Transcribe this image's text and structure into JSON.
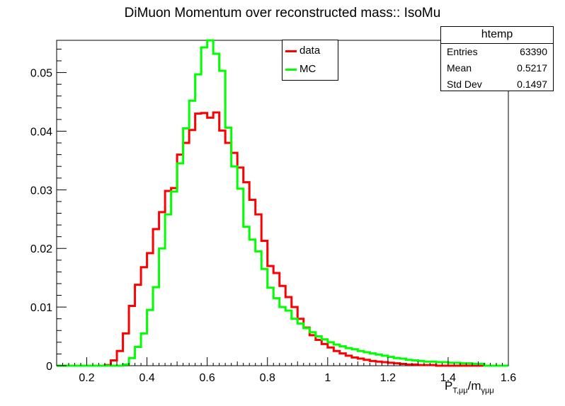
{
  "chart_data": {
    "type": "histogram-step",
    "title": "DiMuon Momentum over reconstructed mass:: IsoMu",
    "xlabel": {
      "base": "P",
      "base_sub": "T,μμ",
      "sep": "/",
      "second": "m",
      "second_sub": "γμμ"
    },
    "xlim": [
      0.1,
      1.6
    ],
    "ylim": [
      0,
      0.0555
    ],
    "x_ticks": [
      "0.2",
      "0.4",
      "0.6",
      "0.8",
      "1",
      "1.2",
      "1.4",
      "1.6"
    ],
    "x_tick_values": [
      0.2,
      0.4,
      0.6,
      0.8,
      1.0,
      1.2,
      1.4,
      1.6
    ],
    "y_ticks": [
      "0",
      "0.01",
      "0.02",
      "0.03",
      "0.04",
      "0.05"
    ],
    "y_tick_values": [
      0,
      0.01,
      0.02,
      0.03,
      0.04,
      0.05
    ],
    "bin_edges_start": 0.1,
    "bin_width": 0.02,
    "series": [
      {
        "name": "data",
        "color": "#ff0000",
        "values": [
          0,
          0,
          0,
          0,
          0,
          0,
          0,
          0,
          0.0001,
          0.0009,
          0.0025,
          0.0055,
          0.0102,
          0.0138,
          0.0168,
          0.0192,
          0.0233,
          0.0262,
          0.0298,
          0.0303,
          0.036,
          0.038,
          0.0402,
          0.043,
          0.0431,
          0.0423,
          0.0432,
          0.0401,
          0.038,
          0.0363,
          0.0338,
          0.0313,
          0.0283,
          0.0258,
          0.0213,
          0.017,
          0.0158,
          0.0136,
          0.0117,
          0.01,
          0.008,
          0.0065,
          0.0052,
          0.0044,
          0.0037,
          0.0031,
          0.0025,
          0.0021,
          0.0017,
          0.0014,
          0.0012,
          0.001,
          0.0008,
          0.0007,
          0.0006,
          0.0005,
          0.0004,
          0.0003,
          0.0002,
          0.0002,
          0.0001,
          0.0001,
          0.0001,
          0,
          0,
          0,
          0,
          0,
          0,
          0,
          0,
          0,
          0,
          0,
          0
        ]
      },
      {
        "name": "MC",
        "color": "#00ff00",
        "values": [
          0,
          0,
          0,
          0,
          0,
          0,
          0,
          0,
          0,
          0,
          0,
          0.0002,
          0.0013,
          0.0032,
          0.0055,
          0.0095,
          0.0134,
          0.02,
          0.0258,
          0.0297,
          0.0345,
          0.0405,
          0.0452,
          0.0497,
          0.0543,
          0.0555,
          0.0532,
          0.0503,
          0.0406,
          0.034,
          0.0302,
          0.0237,
          0.0215,
          0.0195,
          0.0165,
          0.0133,
          0.0115,
          0.01,
          0.0094,
          0.008,
          0.0072,
          0.0064,
          0.0057,
          0.005,
          0.0045,
          0.004,
          0.0036,
          0.0033,
          0.003,
          0.0028,
          0.0025,
          0.0023,
          0.0021,
          0.0019,
          0.0017,
          0.0015,
          0.0013,
          0.0012,
          0.001,
          0.0009,
          0.0008,
          0.0007,
          0.0007,
          0.0006,
          0.0006,
          0.0005,
          0.0005,
          0.0004,
          0.0004,
          0.0003,
          0.0003,
          0,
          0,
          0,
          0
        ]
      }
    ],
    "stats": {
      "name": "htemp",
      "entries_label": "Entries",
      "entries": "63390",
      "mean_label": "Mean",
      "mean": "0.5217",
      "std_label": "Std Dev",
      "std": "0.1497"
    }
  }
}
